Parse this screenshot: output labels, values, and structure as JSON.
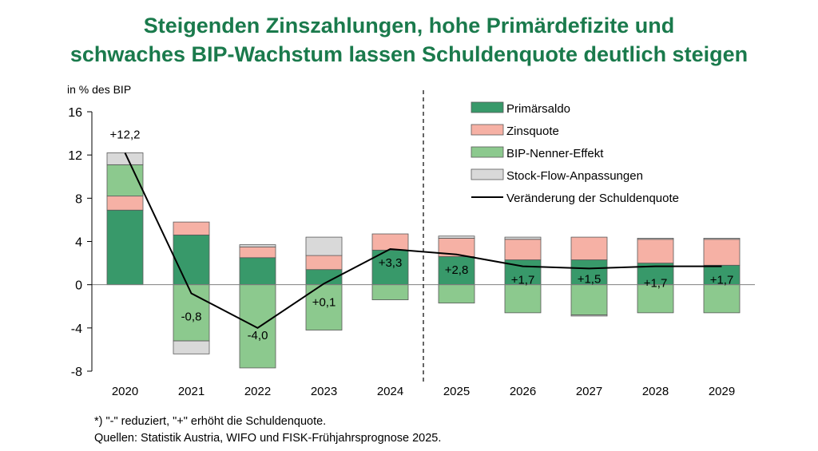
{
  "title_line1": "Steigenden Zinszahlungen, hohe Primärdefizite und",
  "title_line2": "schwaches BIP-Wachstum lassen Schuldenquote deutlich steigen",
  "footnote_line1": "*) \"-\"  reduziert,  \"+\" erhöht die Schuldenquote.",
  "footnote_line2": "Quellen: Statistik Austria, WIFO und FISK-Frühjahrsprognose 2025.",
  "colors": {
    "title": "#1a7a4c",
    "primaersaldo": "#38996a",
    "zinsquote": "#f6b1a5",
    "bip_nenner": "#8cc98e",
    "stock_flow": "#d9d9d9",
    "line": "#000000"
  },
  "chart_data": {
    "type": "bar",
    "stacked": true,
    "ylabel": "in % des BIP",
    "ylim": [
      -8,
      16
    ],
    "yticks": [
      "-8",
      "-4",
      "0",
      "4",
      "8",
      "12",
      "16"
    ],
    "grid": false,
    "legend_position": "top-right",
    "forecast_divider_between": [
      "2024",
      "2025"
    ],
    "categories": [
      "2020",
      "2021",
      "2022",
      "2023",
      "2024",
      "2025",
      "2026",
      "2027",
      "2028",
      "2029"
    ],
    "series": [
      {
        "name": "Primärsaldo",
        "key": "primaersaldo",
        "type": "bar",
        "values": [
          6.9,
          4.6,
          2.5,
          1.4,
          3.2,
          2.6,
          2.3,
          2.3,
          2.0,
          1.8
        ]
      },
      {
        "name": "Zinsquote",
        "key": "zinsquote",
        "type": "bar",
        "values": [
          1.3,
          1.2,
          1.0,
          1.3,
          1.5,
          1.7,
          1.9,
          2.1,
          2.2,
          2.4
        ]
      },
      {
        "name": "BIP-Nenner-Effekt",
        "key": "bip_nenner",
        "type": "bar",
        "values": [
          2.9,
          -5.2,
          -7.7,
          -4.2,
          -1.4,
          -1.7,
          -2.6,
          -2.8,
          -2.6,
          -2.6
        ]
      },
      {
        "name": "Stock-Flow-Anpassungen",
        "key": "stock_flow",
        "type": "bar",
        "values": [
          1.1,
          -1.2,
          0.2,
          1.7,
          0.0,
          0.2,
          0.2,
          -0.1,
          0.1,
          0.1
        ]
      },
      {
        "name": "Veränderung der Schuldenquote",
        "key": "line",
        "type": "line",
        "values": [
          12.2,
          -0.8,
          -4.0,
          0.1,
          3.3,
          2.8,
          1.7,
          1.5,
          1.7,
          1.7
        ]
      }
    ],
    "data_labels": [
      "+12,2",
      "-0,8",
      "-4,0",
      "+0,1",
      "+3,3",
      "+2,8",
      "+1,7",
      "+1,5",
      "+1,7",
      "+1,7"
    ]
  }
}
